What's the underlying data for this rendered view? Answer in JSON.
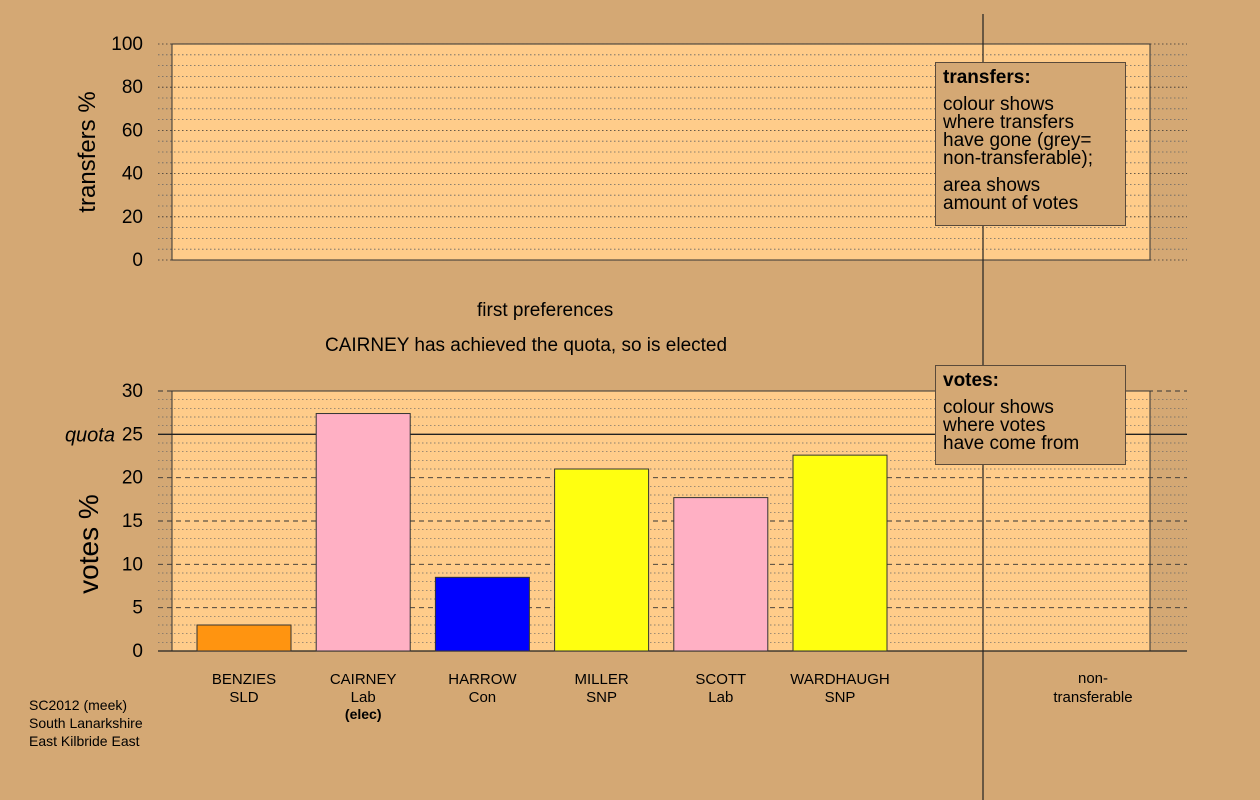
{
  "chart_data": [
    {
      "type": "bar",
      "panel": "transfers",
      "ylabel": "transfers %",
      "ylim": [
        0,
        100
      ],
      "yticks": [
        0,
        20,
        40,
        60,
        80,
        100
      ],
      "series": [],
      "legend": {
        "title": "transfers:",
        "lines_a": [
          "colour shows",
          "where transfers",
          "have gone (grey=",
          "non-transferable);"
        ],
        "lines_b": [
          "area shows",
          "amount of votes"
        ]
      }
    },
    {
      "type": "bar",
      "panel": "votes",
      "ylabel": "votes %",
      "ylim": [
        0,
        30
      ],
      "yticks": [
        0,
        5,
        10,
        15,
        20,
        25,
        30
      ],
      "quota": 25,
      "quota_label": "quota",
      "categories": [
        {
          "name": "BENZIES",
          "party": "SLD",
          "note": ""
        },
        {
          "name": "CAIRNEY",
          "party": "Lab",
          "note": "(elec)"
        },
        {
          "name": "HARROW",
          "party": "Con",
          "note": ""
        },
        {
          "name": "MILLER",
          "party": "SNP",
          "note": ""
        },
        {
          "name": "SCOTT",
          "party": "Lab",
          "note": ""
        },
        {
          "name": "WARDHAUGH",
          "party": "SNP",
          "note": ""
        }
      ],
      "values": [
        3.0,
        27.4,
        8.5,
        21.0,
        17.7,
        22.6
      ],
      "colors": [
        "#ff9410",
        "#ffb0c4",
        "#0000ff",
        "#ffff10",
        "#ffb0c4",
        "#ffff10"
      ],
      "extra_category": {
        "line1": "non-",
        "line2": "transferable"
      },
      "legend": {
        "title": "votes:",
        "lines": [
          "colour shows",
          "where votes",
          "have come from"
        ]
      }
    }
  ],
  "stage_title": "first preferences",
  "stage_message": "CAIRNEY has achieved the quota, so is elected",
  "footer": {
    "line1": "SC2012 (meek)",
    "line2": "South Lanarkshire",
    "line3": "East Kilbride East"
  },
  "colors": {
    "background": "#d4a874",
    "plot_bg": "#ffcc8a"
  }
}
